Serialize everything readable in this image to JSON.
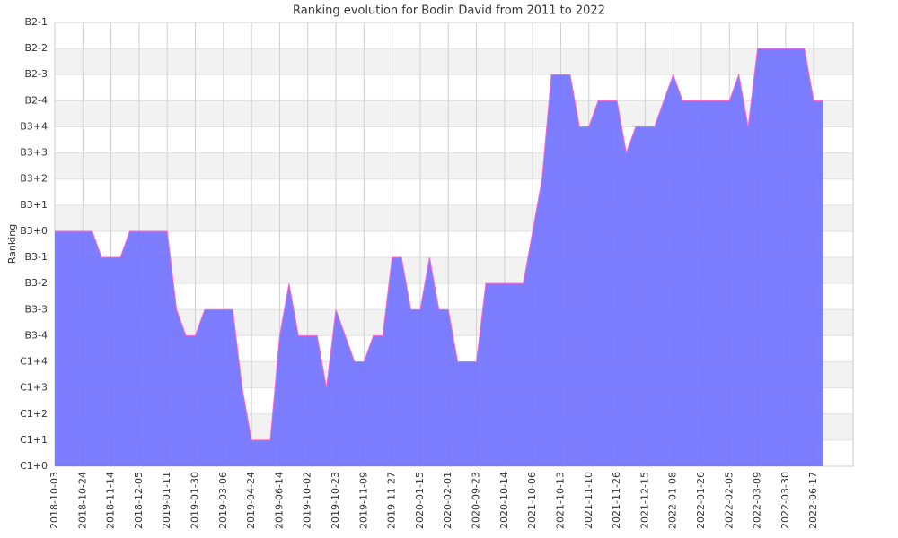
{
  "chart_data": {
    "type": "area",
    "title": "Ranking evolution for Bodin David from 2011 to 2022",
    "ylabel": "Ranking",
    "categories": [
      "2018-10-03",
      null,
      null,
      "2018-10-24",
      null,
      null,
      "2018-11-14",
      null,
      null,
      "2018-12-05",
      null,
      null,
      "2019-01-11",
      null,
      null,
      "2019-01-30",
      null,
      null,
      "2019-03-06",
      null,
      null,
      "2019-04-24",
      null,
      null,
      "2019-06-14",
      null,
      null,
      "2019-10-02",
      null,
      null,
      "2019-10-23",
      null,
      null,
      "2019-11-09",
      null,
      null,
      "2019-11-27",
      null,
      null,
      "2020-01-15",
      null,
      null,
      "2020-02-01",
      null,
      null,
      "2020-09-23",
      null,
      null,
      "2020-10-14",
      null,
      null,
      "2021-10-06",
      null,
      null,
      "2021-10-13",
      null,
      null,
      "2021-11-10",
      null,
      null,
      "2021-11-26",
      null,
      null,
      "2021-12-15",
      null,
      null,
      "2022-01-08",
      null,
      null,
      "2022-01-26",
      null,
      null,
      "2022-02-05",
      null,
      null,
      "2022-03-09",
      null,
      null,
      "2022-03-30",
      null,
      null,
      "2022-06-17",
      null
    ],
    "series": [
      {
        "name": "Ranking",
        "color": "#6f6fff",
        "line_color": "#ff66cc",
        "values": [
          9,
          9,
          9,
          9,
          9,
          8,
          8,
          8,
          9,
          9,
          9,
          9,
          9,
          6,
          5,
          5,
          6,
          6,
          6,
          6,
          3,
          1,
          1,
          1,
          5,
          7,
          5,
          5,
          5,
          3,
          6,
          5,
          4,
          4,
          5,
          5,
          8,
          8,
          6,
          6,
          8,
          6,
          6,
          4,
          4,
          4,
          7,
          7,
          7,
          7,
          7,
          9,
          11,
          15,
          15,
          15,
          13,
          13,
          14,
          14,
          14,
          12,
          13,
          13,
          13,
          14,
          15,
          14,
          14,
          14,
          14,
          14,
          14,
          15,
          13,
          16,
          16,
          16,
          16,
          16,
          16,
          14,
          14
        ]
      }
    ],
    "ylim": [
      0,
      17
    ],
    "yticks": [
      {
        "value": 0,
        "label": "C1+0"
      },
      {
        "value": 1,
        "label": "C1+1"
      },
      {
        "value": 2,
        "label": "C1+2"
      },
      {
        "value": 3,
        "label": "C1+3"
      },
      {
        "value": 4,
        "label": "C1+4"
      },
      {
        "value": 5,
        "label": "B3-4"
      },
      {
        "value": 6,
        "label": "B3-3"
      },
      {
        "value": 7,
        "label": "B3-2"
      },
      {
        "value": 8,
        "label": "B3-1"
      },
      {
        "value": 9,
        "label": "B3+0"
      },
      {
        "value": 10,
        "label": "B3+1"
      },
      {
        "value": 11,
        "label": "B3+2"
      },
      {
        "value": 12,
        "label": "B3+3"
      },
      {
        "value": 13,
        "label": "B3+4"
      },
      {
        "value": 14,
        "label": "B2-4"
      },
      {
        "value": 15,
        "label": "B2-3"
      },
      {
        "value": 16,
        "label": "B2-2"
      },
      {
        "value": 17,
        "label": "B2-1"
      }
    ],
    "grid": true
  }
}
